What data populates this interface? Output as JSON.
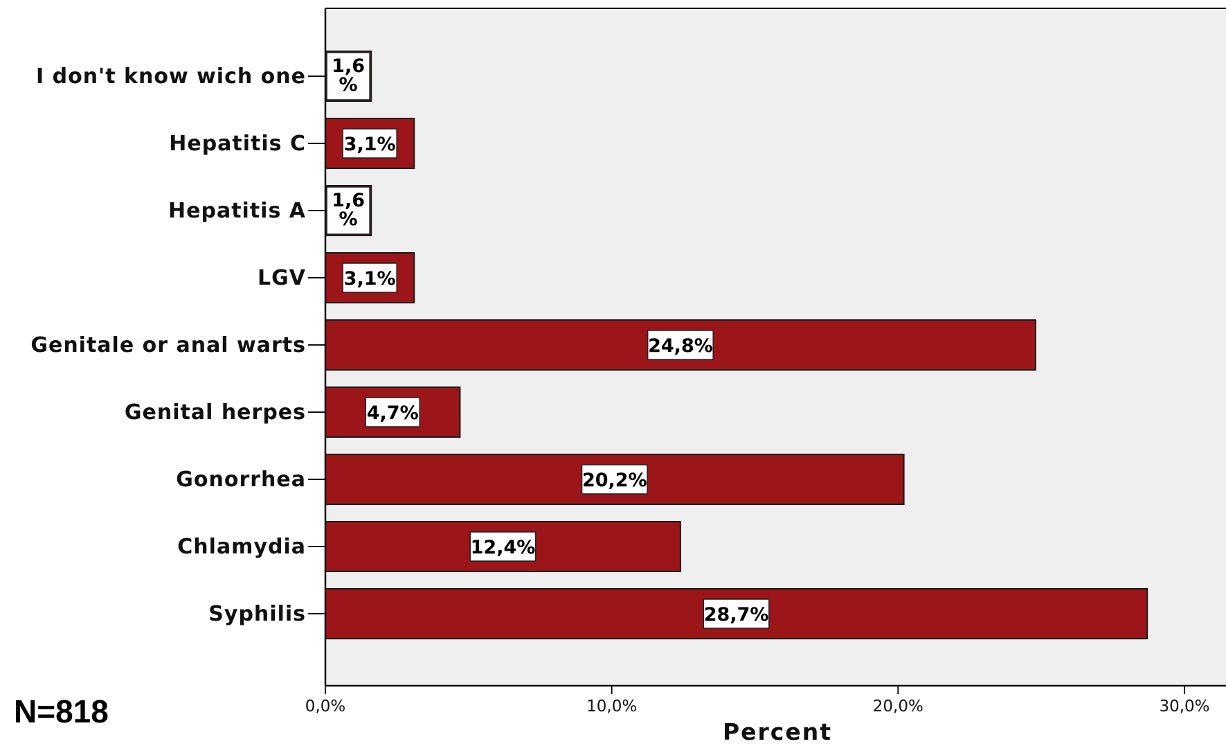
{
  "note": "N=818",
  "chart_data": {
    "type": "bar",
    "orientation": "horizontal",
    "categories": [
      "I don't know wich one",
      "Hepatitis C",
      "Hepatitis A",
      "LGV",
      "Genitale or anal warts",
      "Genital herpes",
      "Gonorrhea",
      "Chlamydia",
      "Syphilis"
    ],
    "values": [
      1.6,
      3.1,
      1.6,
      3.1,
      24.8,
      4.7,
      20.2,
      12.4,
      28.7
    ],
    "data_labels": [
      "1,6\n%",
      "3,1%",
      "1,6\n%",
      "3,1%",
      "24,8%",
      "4,7%",
      "20,2%",
      "12,4%",
      "28,7%"
    ],
    "xlabel": "Percent",
    "ylabel": "",
    "xlim": [
      0,
      30
    ],
    "x_ticks": [
      0,
      10,
      20,
      30
    ],
    "x_tick_labels": [
      "0,0%",
      "10,0%",
      "20,0%",
      "30,0%"
    ],
    "grid": false,
    "colors": {
      "bar": "#9b1519",
      "plot_background": "#efefef",
      "label_box": "#ffffff"
    }
  }
}
